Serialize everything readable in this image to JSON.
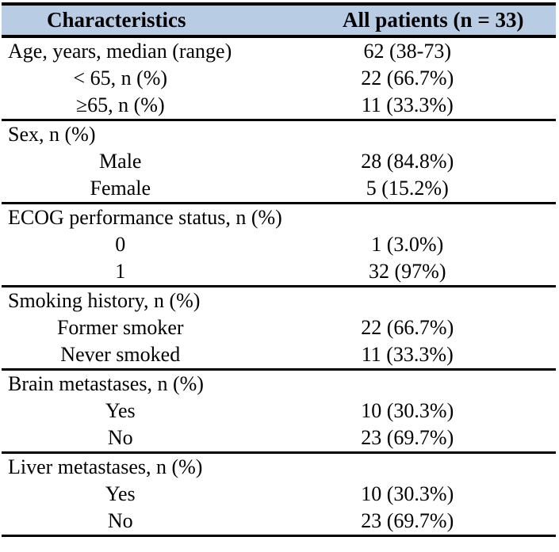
{
  "table": {
    "header": {
      "col1": "Characteristics",
      "col2": "All patients (n = 33)"
    },
    "sections": [
      {
        "name": "age",
        "rows": [
          {
            "label": "Age, years, median (range)",
            "value": "62 (38-73)",
            "type": "category"
          },
          {
            "label": "< 65, n (%)",
            "value": "22 (66.7%)",
            "type": "sub"
          },
          {
            "label": "≥65, n (%)",
            "value": "11 (33.3%)",
            "type": "sub"
          }
        ]
      },
      {
        "name": "sex",
        "rows": [
          {
            "label": "Sex, n (%)",
            "value": "",
            "type": "category"
          },
          {
            "label": "Male",
            "value": "28 (84.8%)",
            "type": "sub"
          },
          {
            "label": "Female",
            "value": "5 (15.2%)",
            "type": "sub"
          }
        ]
      },
      {
        "name": "ecog",
        "rows": [
          {
            "label": "ECOG performance status, n (%)",
            "value": "",
            "type": "category"
          },
          {
            "label": "0",
            "value": "1 (3.0%)",
            "type": "sub"
          },
          {
            "label": "1",
            "value": "32 (97%)",
            "type": "sub"
          }
        ]
      },
      {
        "name": "smoking",
        "rows": [
          {
            "label": "Smoking history, n (%)",
            "value": "",
            "type": "category"
          },
          {
            "label": "Former smoker",
            "value": "22 (66.7%)",
            "type": "sub"
          },
          {
            "label": "Never smoked",
            "value": "11 (33.3%)",
            "type": "sub"
          }
        ]
      },
      {
        "name": "brain-metastases",
        "rows": [
          {
            "label": "Brain metastases, n (%)",
            "value": "",
            "type": "category"
          },
          {
            "label": "Yes",
            "value": "10 (30.3%)",
            "type": "sub"
          },
          {
            "label": "No",
            "value": "23 (69.7%)",
            "type": "sub"
          }
        ]
      },
      {
        "name": "liver-metastases",
        "rows": [
          {
            "label": "Liver metastases, n (%)",
            "value": "",
            "type": "category"
          },
          {
            "label": "Yes",
            "value": "10 (30.3%)",
            "type": "sub"
          },
          {
            "label": "No",
            "value": "23 (69.7%)",
            "type": "sub"
          }
        ]
      }
    ]
  },
  "colors": {
    "header_background": "#b8cce4",
    "rule": "#000000",
    "text": "#000000",
    "page_background": "#ffffff"
  }
}
